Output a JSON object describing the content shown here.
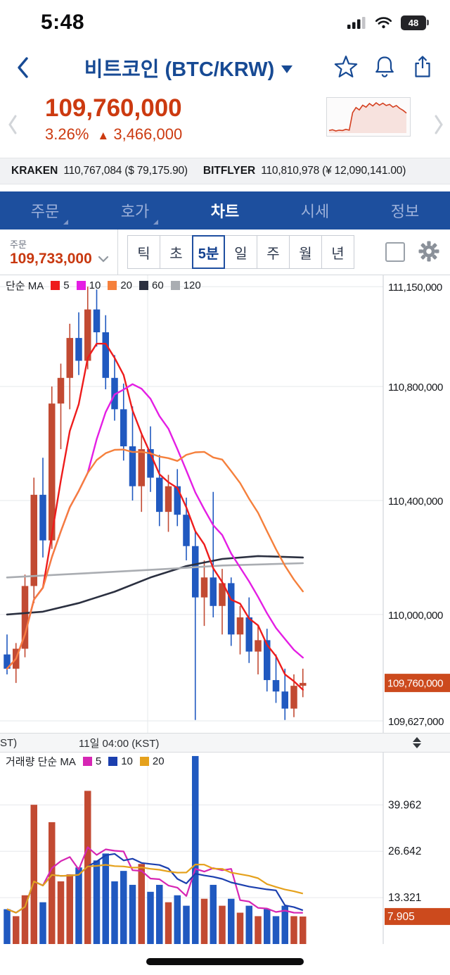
{
  "status_bar": {
    "time": "5:48",
    "battery_level": "48"
  },
  "header": {
    "title": "비트코인 (BTC/KRW)"
  },
  "price": {
    "value": "109,760,000",
    "change_pct": "3.26%",
    "change_dir": "▲",
    "change_abs": "3,466,000"
  },
  "exchanges": [
    {
      "name": "KRAKEN",
      "value": "110,767,084 ($ 79,175.90)"
    },
    {
      "name": "BITFLYER",
      "value": "110,810,978 (¥ 12,090,141.00)"
    }
  ],
  "tabs": [
    {
      "label": "주문",
      "submenu": true,
      "active": false
    },
    {
      "label": "호가",
      "submenu": true,
      "active": false
    },
    {
      "label": "차트",
      "submenu": false,
      "active": true
    },
    {
      "label": "시세",
      "submenu": false,
      "active": false
    },
    {
      "label": "정보",
      "submenu": false,
      "active": false
    }
  ],
  "toolbar": {
    "order_label": "주문",
    "order_price": "109,733,000",
    "intervals": [
      "틱",
      "초",
      "5분",
      "일",
      "주",
      "월",
      "년"
    ],
    "active_interval": 2
  },
  "icons": {
    "status": [
      "cellular-signal",
      "wifi",
      "battery"
    ],
    "header": [
      "back-chevron",
      "star",
      "bell",
      "share"
    ],
    "toolbar": [
      "chevron-down",
      "square-outline",
      "gear"
    ],
    "pager": [
      "chevron-left",
      "chevron-right"
    ],
    "axis": [
      "updown-arrows"
    ]
  },
  "colors": {
    "brand_navy": "#1d4f9e",
    "accent_red": "#cc3a10",
    "price_badge": "#cc4a1d"
  },
  "chart_data": {
    "type": "candlestick",
    "title": "비트코인 (BTC/KRW) 5분봉 차트",
    "legend_label": "단순 MA",
    "volume_legend_label": "거래량 단순 MA",
    "ma_legend": [
      {
        "period": "5",
        "color": "#ee1c1c"
      },
      {
        "period": "10",
        "color": "#e41ee4"
      },
      {
        "period": "20",
        "color": "#f5803c"
      },
      {
        "period": "60",
        "color": "#2b3040"
      },
      {
        "period": "120",
        "color": "#aaadb2"
      }
    ],
    "volume_ma_legend": [
      {
        "period": "5",
        "color": "#d626b4"
      },
      {
        "period": "10",
        "color": "#1b3fae"
      },
      {
        "period": "20",
        "color": "#e5a11c"
      }
    ],
    "up_color": "#c24a32",
    "down_color": "#2059c0",
    "price_min": 109585000,
    "price_max": 111190000,
    "price_ticks": [
      {
        "v": 111150000,
        "label": "111,150,000"
      },
      {
        "v": 110800000,
        "label": "110,800,000"
      },
      {
        "v": 110400000,
        "label": "110,400,000"
      },
      {
        "v": 110000000,
        "label": "110,000,000"
      },
      {
        "v": 109627000,
        "label": "109,627,000"
      }
    ],
    "last_price": 109760000,
    "last_price_label": "109,760,000",
    "volume_max": 55,
    "volume_ticks": [
      {
        "v": 39.962,
        "label": "39.962"
      },
      {
        "v": 26.642,
        "label": "26.642"
      },
      {
        "v": 13.321,
        "label": "13.321"
      }
    ],
    "last_volume": 7.905,
    "last_volume_label": "7.905",
    "x_label_left": "ST)",
    "x_label_center": "11일 04:00 (KST)",
    "ma_periods": [
      5,
      10,
      20
    ],
    "volume_ma_periods": [
      5,
      10,
      20
    ],
    "candles": [
      [
        109860000,
        109930000,
        109790000,
        109810000,
        10
      ],
      [
        109810000,
        109900000,
        109760000,
        109880000,
        8
      ],
      [
        109880000,
        110140000,
        109850000,
        110100000,
        14
      ],
      [
        110100000,
        110480000,
        110040000,
        110420000,
        40
      ],
      [
        110420000,
        110550000,
        110200000,
        110260000,
        12
      ],
      [
        110260000,
        110800000,
        110230000,
        110740000,
        35
      ],
      [
        110740000,
        110880000,
        110580000,
        110830000,
        18
      ],
      [
        110830000,
        111020000,
        110720000,
        110970000,
        20
      ],
      [
        110970000,
        111060000,
        110840000,
        110890000,
        22
      ],
      [
        110890000,
        111150000,
        110860000,
        111070000,
        44
      ],
      [
        111070000,
        111140000,
        110940000,
        110990000,
        24
      ],
      [
        110990000,
        111050000,
        110790000,
        110830000,
        26
      ],
      [
        110830000,
        110910000,
        110680000,
        110720000,
        18
      ],
      [
        110720000,
        110810000,
        110540000,
        110590000,
        21
      ],
      [
        110590000,
        110730000,
        110400000,
        110450000,
        17
      ],
      [
        110450000,
        110630000,
        110360000,
        110580000,
        23
      ],
      [
        110580000,
        110660000,
        110430000,
        110480000,
        15
      ],
      [
        110480000,
        110560000,
        110310000,
        110360000,
        17
      ],
      [
        110360000,
        110490000,
        110290000,
        110450000,
        12
      ],
      [
        110450000,
        110510000,
        110310000,
        110350000,
        14
      ],
      [
        110350000,
        110410000,
        110190000,
        110240000,
        11
      ],
      [
        110240000,
        110290000,
        109630000,
        110060000,
        54
      ],
      [
        110060000,
        110190000,
        109960000,
        110130000,
        13
      ],
      [
        110130000,
        110430000,
        109990000,
        110030000,
        17
      ],
      [
        110030000,
        110160000,
        109930000,
        110110000,
        11
      ],
      [
        110110000,
        110130000,
        109890000,
        109930000,
        13
      ],
      [
        109930000,
        110030000,
        109860000,
        109990000,
        9
      ],
      [
        109990000,
        110060000,
        109830000,
        109870000,
        11
      ],
      [
        109870000,
        109960000,
        109790000,
        109910000,
        8
      ],
      [
        109910000,
        109950000,
        109730000,
        109770000,
        10
      ],
      [
        109770000,
        109860000,
        109690000,
        109730000,
        8
      ],
      [
        109730000,
        109810000,
        109630000,
        109670000,
        11
      ],
      [
        109670000,
        109790000,
        109640000,
        109750000,
        8
      ],
      [
        109750000,
        109810000,
        109710000,
        109760000,
        7.905
      ]
    ],
    "overlay_ma": [
      {
        "period": "60",
        "color": "#2b3040",
        "points": [
          [
            0,
            110000000
          ],
          [
            4,
            110010000
          ],
          [
            8,
            110040000
          ],
          [
            12,
            110080000
          ],
          [
            16,
            110130000
          ],
          [
            20,
            110170000
          ],
          [
            24,
            110195000
          ],
          [
            28,
            110205000
          ],
          [
            33,
            110200000
          ]
        ]
      },
      {
        "period": "120",
        "color": "#aaadb2",
        "points": [
          [
            0,
            110130000
          ],
          [
            6,
            110140000
          ],
          [
            12,
            110150000
          ],
          [
            18,
            110160000
          ],
          [
            24,
            110172000
          ],
          [
            33,
            110180000
          ]
        ]
      }
    ],
    "sparkline": [
      2,
      2.2,
      1.9,
      2.1,
      2,
      2.3,
      2.1,
      6.5,
      7.8,
      7.2,
      8.4,
      7.9,
      8.8,
      8.2,
      9.0,
      8.4,
      8.9,
      8.3,
      8.6,
      7.9,
      8.3,
      7.6,
      7.1,
      6.4
    ]
  }
}
